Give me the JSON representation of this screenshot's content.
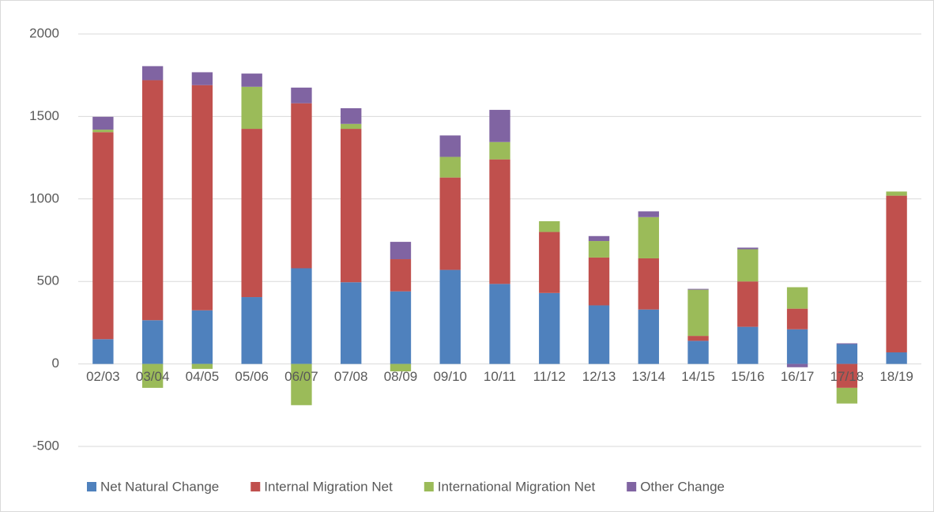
{
  "chart_data": {
    "type": "stacked_bar",
    "categories": [
      "02/03",
      "03/04",
      "04/05",
      "05/06",
      "06/07",
      "07/08",
      "08/09",
      "09/10",
      "10/11",
      "11/12",
      "12/13",
      "13/14",
      "14/15",
      "15/16",
      "16/17",
      "17/18",
      "18/19"
    ],
    "series": [
      {
        "name": "Net Natural Change",
        "color": "#4f81bd",
        "values": [
          150,
          265,
          325,
          405,
          580,
          495,
          440,
          570,
          485,
          430,
          355,
          330,
          140,
          225,
          210,
          120,
          70
        ]
      },
      {
        "name": "Internal Migration Net",
        "color": "#c0504d",
        "values": [
          1255,
          1455,
          1365,
          1020,
          1000,
          930,
          195,
          560,
          755,
          370,
          290,
          310,
          30,
          275,
          125,
          -145,
          950
        ]
      },
      {
        "name": "International Migration Net",
        "color": "#9bbb59",
        "values": [
          15,
          -145,
          -30,
          255,
          -250,
          30,
          -45,
          125,
          105,
          65,
          100,
          250,
          280,
          195,
          130,
          -95,
          25
        ]
      },
      {
        "name": "Other Change",
        "color": "#8064a2",
        "values": [
          78,
          85,
          78,
          80,
          95,
          95,
          105,
          130,
          195,
          0,
          30,
          35,
          5,
          10,
          -20,
          5,
          0
        ]
      }
    ],
    "ylim": [
      -500,
      2000
    ],
    "yticks": [
      -500,
      0,
      500,
      1000,
      1500,
      2000
    ],
    "grid": true,
    "legend": "bottom"
  }
}
